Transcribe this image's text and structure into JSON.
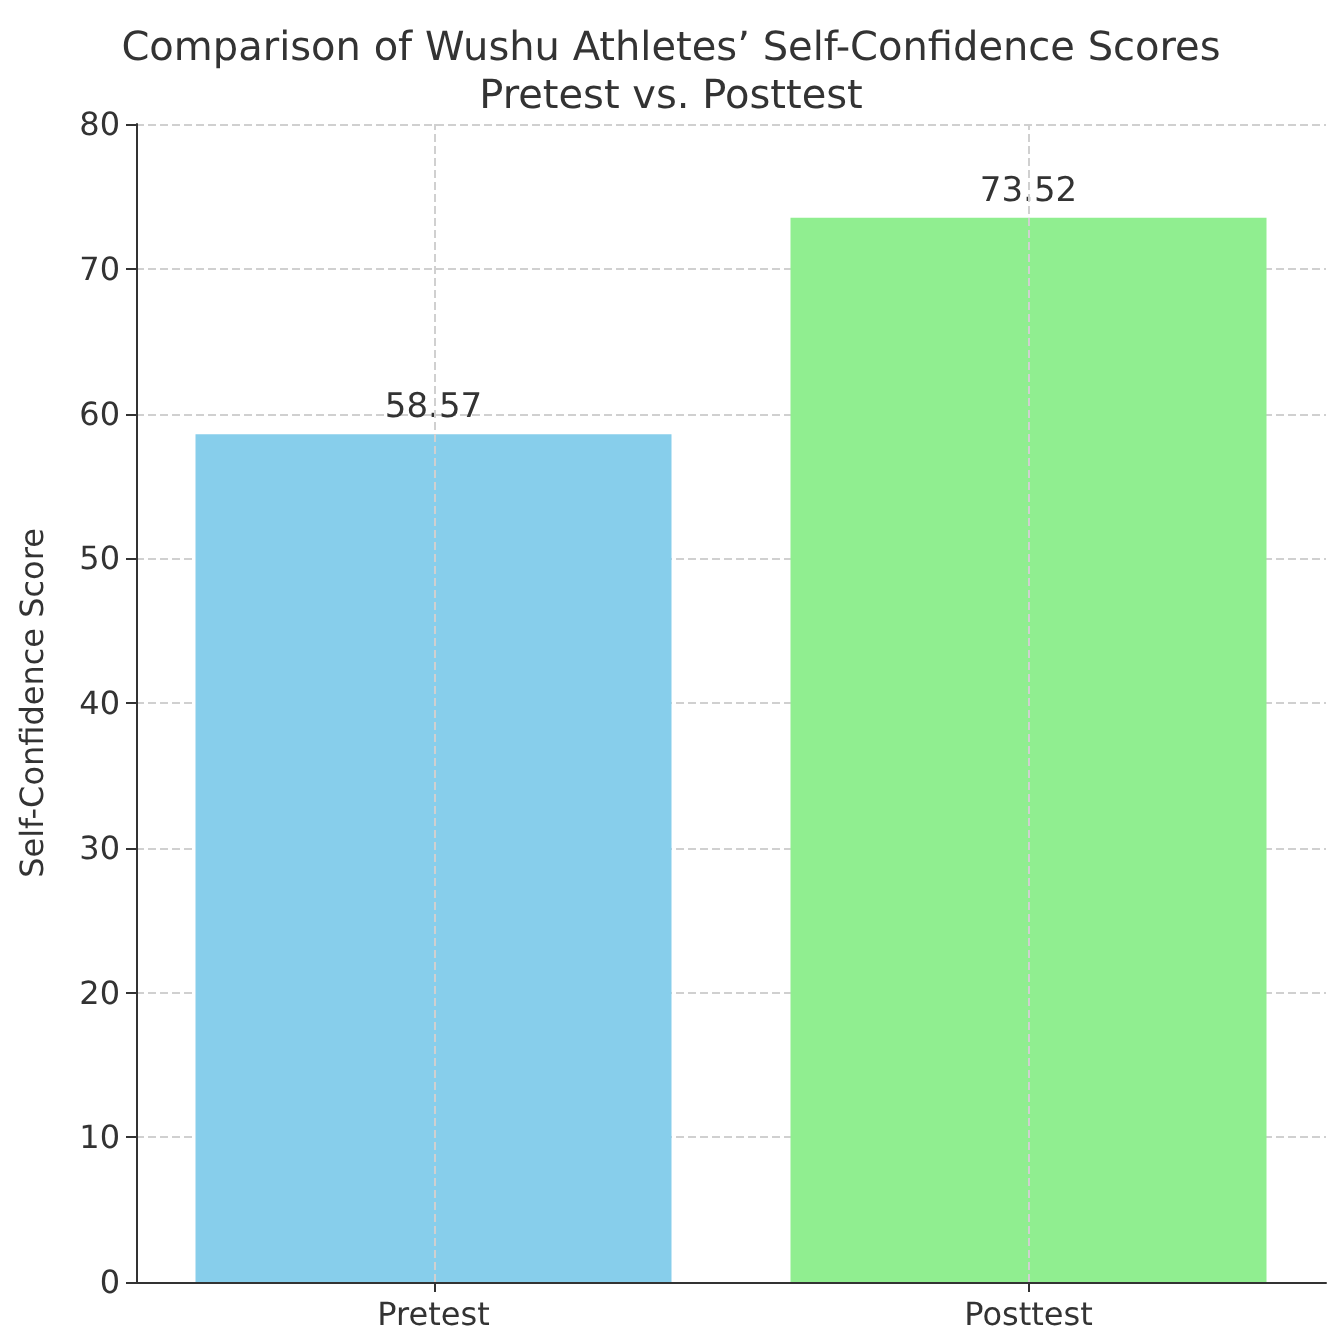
{
  "chart_data": {
    "type": "bar",
    "title": "Comparison of Wushu Athletes’ Self-Confidence Scores\nPretest vs. Posttest",
    "ylabel": "Self-Confidence Score",
    "categories": [
      "Pretest",
      "Posttest"
    ],
    "values": [
      58.57,
      73.52
    ],
    "colors": [
      "#87ceeb",
      "#90ee90"
    ],
    "ylim": [
      0,
      80
    ],
    "yticks": [
      0,
      10,
      20,
      30,
      40,
      50,
      60,
      70,
      80
    ],
    "grid": true,
    "data_labels": true
  }
}
